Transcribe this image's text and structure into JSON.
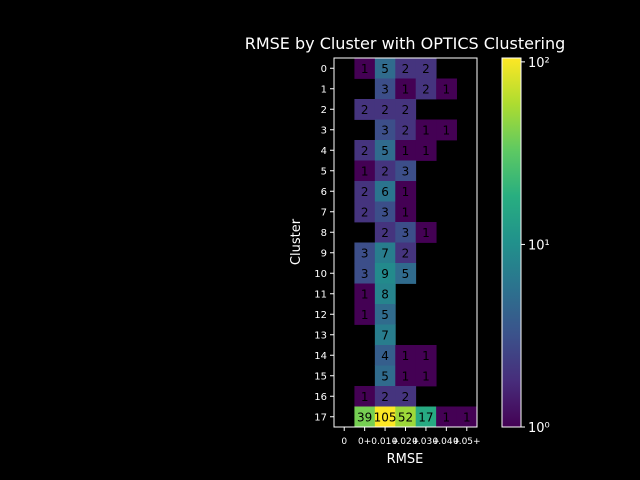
{
  "chart_data": {
    "type": "heatmap",
    "title": "RMSE by Cluster with OPTICS Clustering",
    "xlabel": "RMSE",
    "ylabel": "Cluster",
    "x_tick_labels": [
      "0",
      "0+",
      "0.01+",
      "0.02+",
      "0.03+",
      "0.04+",
      "0.05+"
    ],
    "y_tick_labels": [
      "0",
      "1",
      "2",
      "3",
      "4",
      "5",
      "6",
      "7",
      "8",
      "9",
      "10",
      "11",
      "12",
      "13",
      "14",
      "15",
      "16",
      "17"
    ],
    "values": [
      [
        null,
        1,
        5,
        2,
        2,
        null,
        null
      ],
      [
        null,
        null,
        3,
        1,
        2,
        1,
        null
      ],
      [
        null,
        2,
        2,
        2,
        null,
        null,
        null
      ],
      [
        null,
        null,
        3,
        2,
        1,
        1,
        null
      ],
      [
        null,
        2,
        5,
        1,
        1,
        null,
        null
      ],
      [
        null,
        1,
        2,
        3,
        null,
        null,
        null
      ],
      [
        null,
        2,
        6,
        1,
        null,
        null,
        null
      ],
      [
        null,
        2,
        3,
        1,
        null,
        null,
        null
      ],
      [
        null,
        null,
        2,
        3,
        1,
        null,
        null
      ],
      [
        null,
        3,
        7,
        2,
        null,
        null,
        null
      ],
      [
        null,
        3,
        9,
        5,
        null,
        null,
        null
      ],
      [
        null,
        1,
        8,
        null,
        null,
        null,
        null
      ],
      [
        null,
        1,
        5,
        null,
        null,
        null,
        null
      ],
      [
        null,
        null,
        7,
        null,
        null,
        null,
        null
      ],
      [
        null,
        null,
        4,
        1,
        1,
        null,
        null
      ],
      [
        null,
        null,
        5,
        1,
        1,
        null,
        null
      ],
      [
        null,
        1,
        2,
        2,
        null,
        null,
        null
      ],
      [
        null,
        39,
        105,
        52,
        17,
        1,
        1
      ]
    ],
    "colorbar": {
      "scale": "log",
      "range": [
        1,
        105
      ],
      "colormap": "viridis",
      "tick_values": [
        1,
        10,
        100
      ],
      "tick_labels": [
        "10⁰",
        "10¹",
        "10²"
      ]
    },
    "grid": false,
    "background": "#000000",
    "text_color": "#ffffff"
  }
}
